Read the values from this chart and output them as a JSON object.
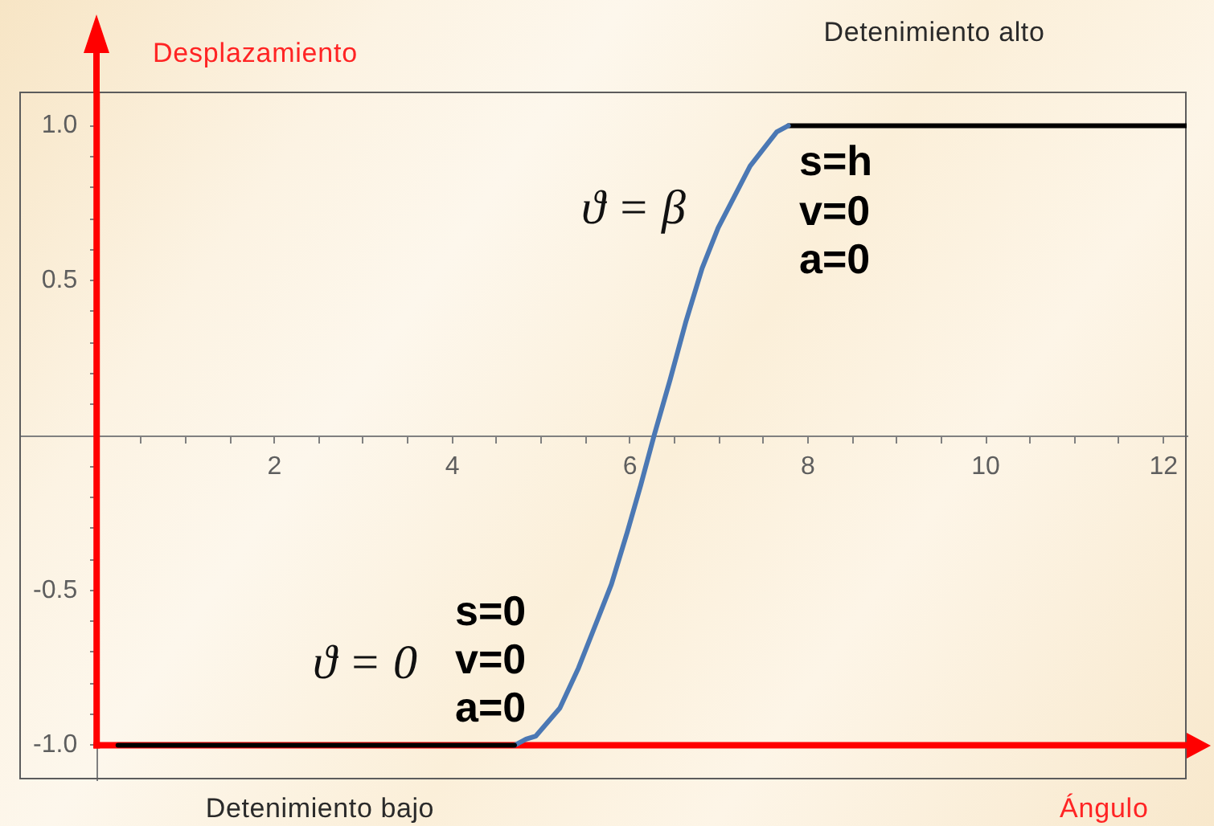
{
  "chart_data": {
    "type": "line",
    "xlabel": "Ángulo",
    "ylabel": "Desplazamiento",
    "annotations": [
      "Detenimiento alto",
      "Detenimiento bajo",
      "ϑ = β",
      "ϑ = 0",
      "s=h",
      "v=0",
      "a=0",
      "s=0",
      "v=0",
      "a=0"
    ],
    "series": [
      {
        "color": "#000000",
        "x": [
          0.24,
          4.7
        ],
        "values": [
          -1,
          -1
        ]
      },
      {
        "color": "#4b78b4",
        "x": [
          4.7,
          4.83,
          4.94,
          5.21,
          5.42,
          5.64,
          5.79,
          5.97,
          6.12,
          6.27,
          6.45,
          6.63,
          6.81,
          6.99,
          7.17,
          7.35,
          7.54,
          7.65,
          7.78
        ],
        "values": [
          -1,
          -0.98,
          -0.97,
          -0.88,
          -0.75,
          -0.59,
          -0.48,
          -0.31,
          -0.16,
          0,
          0.18,
          0.37,
          0.54,
          0.67,
          0.77,
          0.87,
          0.94,
          0.98,
          1
        ]
      },
      {
        "color": "#000000",
        "x": [
          7.78,
          12.26
        ],
        "values": [
          1,
          1
        ]
      }
    ],
    "xlim": [
      -0.87,
      12.26
    ],
    "ylim": [
      -1.11,
      1.11
    ],
    "xticks": [
      {
        "value": 0.5,
        "label": null
      },
      {
        "value": 1,
        "label": null
      },
      {
        "value": 1.5,
        "label": null
      },
      2,
      {
        "value": 2.5,
        "label": null
      },
      {
        "value": 3,
        "label": null
      },
      {
        "value": 3.5,
        "label": null
      },
      4,
      {
        "value": 4.5,
        "label": null
      },
      {
        "value": 5,
        "label": null
      },
      {
        "value": 5.5,
        "label": null
      },
      6,
      {
        "value": 6.5,
        "label": null
      },
      {
        "value": 7,
        "label": null
      },
      {
        "value": 7.5,
        "label": null
      },
      8,
      {
        "value": 8.5,
        "label": null
      },
      {
        "value": 9,
        "label": null
      },
      {
        "value": 9.5,
        "label": null
      },
      10,
      {
        "value": 10.5,
        "label": null
      },
      {
        "value": 11,
        "label": null
      },
      {
        "value": 11.5,
        "label": null
      },
      12
    ],
    "yticks": [
      {
        "value": -1,
        "label": "-1.0"
      },
      {
        "value": -0.9,
        "label": null
      },
      {
        "value": -0.8,
        "label": null
      },
      {
        "value": -0.7,
        "label": null
      },
      {
        "value": -0.6,
        "label": null
      },
      -0.5,
      {
        "value": -0.4,
        "label": null
      },
      {
        "value": -0.3,
        "label": null
      },
      {
        "value": -0.2,
        "label": null
      },
      {
        "value": -0.1,
        "label": null
      },
      {
        "value": 0.1,
        "label": null
      },
      {
        "value": 0.2,
        "label": null
      },
      {
        "value": 0.3,
        "label": null
      },
      {
        "value": 0.4,
        "label": null
      },
      0.5,
      {
        "value": 0.6,
        "label": null
      },
      {
        "value": 0.7,
        "label": null
      },
      {
        "value": 0.8,
        "label": null
      },
      {
        "value": 0.9,
        "label": null
      },
      {
        "value": 1,
        "label": "1.0"
      }
    ],
    "ref_lines": [
      {
        "axis": "x",
        "value": 0,
        "color": "#ff0000"
      },
      {
        "axis": "y",
        "value": -1,
        "color": "#ff0000"
      }
    ]
  }
}
